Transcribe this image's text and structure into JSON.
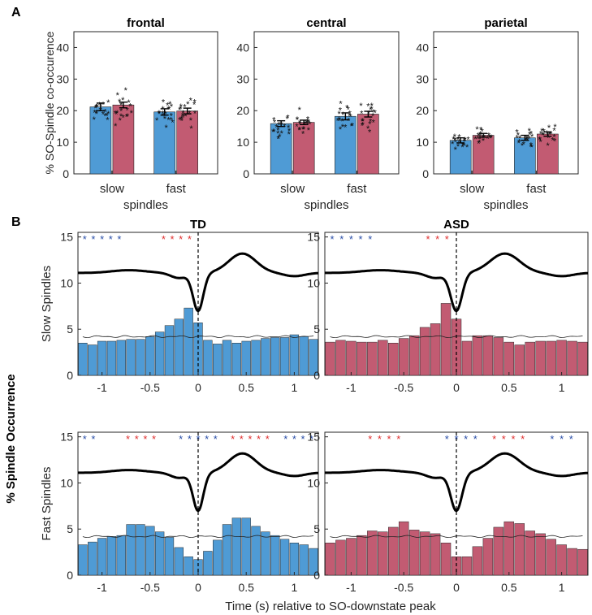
{
  "panel_labels": {
    "a": "A",
    "b": "B"
  },
  "colors": {
    "td": "#4f9bd5",
    "asd": "#c25b72",
    "td_star": "#2b4fa8",
    "asd_star": "#e03030",
    "curve": "#000000",
    "axis": "#262626"
  },
  "chart_data": [
    {
      "type": "bar",
      "panel": "A",
      "title": "frontal",
      "ylabel": "% SO-Spindle co-occurence",
      "xlabel": "spindles",
      "categories": [
        "slow",
        "fast"
      ],
      "ylim": [
        0,
        45
      ],
      "yticks": [
        "0",
        "10",
        "20",
        "30",
        "40"
      ],
      "series": [
        {
          "name": "TD",
          "values": [
            21.2,
            19.6
          ],
          "sem": [
            1.2,
            1.0
          ]
        },
        {
          "name": "ASD",
          "values": [
            21.8,
            19.9
          ],
          "sem": [
            0.9,
            0.9
          ]
        }
      ]
    },
    {
      "type": "bar",
      "panel": "A",
      "title": "central",
      "xlabel": "spindles",
      "categories": [
        "slow",
        "fast"
      ],
      "ylim": [
        0,
        45
      ],
      "yticks": [
        "0",
        "10",
        "20",
        "30",
        "40"
      ],
      "series": [
        {
          "name": "TD",
          "values": [
            15.9,
            18.2
          ],
          "sem": [
            0.9,
            1.1
          ]
        },
        {
          "name": "ASD",
          "values": [
            16.3,
            18.9
          ],
          "sem": [
            0.7,
            0.9
          ]
        }
      ]
    },
    {
      "type": "bar",
      "panel": "A",
      "title": "parietal",
      "xlabel": "spindles",
      "categories": [
        "slow",
        "fast"
      ],
      "ylim": [
        0,
        45
      ],
      "yticks": [
        "0",
        "10",
        "20",
        "30",
        "40"
      ],
      "series": [
        {
          "name": "TD",
          "values": [
            10.6,
            11.4
          ],
          "sem": [
            0.8,
            0.8
          ]
        },
        {
          "name": "ASD",
          "values": [
            12.2,
            12.6
          ],
          "sem": [
            0.6,
            0.7
          ]
        }
      ]
    },
    {
      "type": "bar",
      "panel": "B",
      "title": "TD",
      "group": "TD",
      "ylabel": "Slow Spindles",
      "xlim": [
        -1.25,
        1.25
      ],
      "ylim": [
        0,
        15.5
      ],
      "xticks": [
        -1,
        -0.5,
        0,
        0.5,
        1
      ],
      "xticklabels": [
        "-1",
        "-0.5",
        "0",
        "0.5",
        "1"
      ],
      "yticks": [
        0,
        5,
        10,
        15
      ],
      "yticklabels": [
        "0",
        "5",
        "10",
        "15"
      ],
      "bin_centers": [
        -1.2,
        -1.1,
        -1.0,
        -0.9,
        -0.8,
        -0.7,
        -0.6,
        -0.5,
        -0.4,
        -0.3,
        -0.2,
        -0.1,
        0.0,
        0.1,
        0.2,
        0.3,
        0.4,
        0.5,
        0.6,
        0.7,
        0.8,
        0.9,
        1.0,
        1.1,
        1.2
      ],
      "values": [
        3.5,
        3.3,
        3.7,
        3.7,
        3.8,
        3.9,
        3.9,
        4.2,
        4.7,
        5.4,
        6.1,
        7.3,
        5.7,
        3.8,
        3.4,
        3.8,
        3.5,
        3.7,
        3.8,
        4.0,
        4.1,
        4.1,
        4.4,
        4.2,
        3.9
      ],
      "chance_level": 4.2,
      "stars_blue": [
        -1.18,
        -1.09,
        -1.0,
        -0.91,
        -0.82
      ],
      "stars_red": [
        -0.36,
        -0.27,
        -0.18,
        -0.09
      ]
    },
    {
      "type": "bar",
      "panel": "B",
      "title": "ASD",
      "group": "ASD",
      "xlim": [
        -1.25,
        1.25
      ],
      "ylim": [
        0,
        15.5
      ],
      "xticks": [
        -1,
        -0.5,
        0,
        0.5,
        1
      ],
      "xticklabels": [
        "-1",
        "-0.5",
        "0",
        "0.5",
        "1"
      ],
      "yticks": [
        0,
        5,
        10,
        15
      ],
      "yticklabels": [
        "0",
        "5",
        "10",
        "15"
      ],
      "bin_centers": [
        -1.2,
        -1.1,
        -1.0,
        -0.9,
        -0.8,
        -0.7,
        -0.6,
        -0.5,
        -0.4,
        -0.3,
        -0.2,
        -0.1,
        0.0,
        0.1,
        0.2,
        0.3,
        0.4,
        0.5,
        0.6,
        0.7,
        0.8,
        0.9,
        1.0,
        1.1,
        1.2
      ],
      "values": [
        3.6,
        3.8,
        3.7,
        3.6,
        3.6,
        3.8,
        3.5,
        4.0,
        4.3,
        5.2,
        5.6,
        7.8,
        6.1,
        3.7,
        4.3,
        4.3,
        4.1,
        3.6,
        3.3,
        3.6,
        3.7,
        3.7,
        3.8,
        3.7,
        3.6
      ],
      "chance_level": 4.2,
      "stars_blue": [
        -1.18,
        -1.09,
        -1.0,
        -0.91,
        -0.82
      ],
      "stars_red": [
        -0.27,
        -0.18,
        -0.09
      ]
    },
    {
      "type": "bar",
      "panel": "B",
      "title": "",
      "group": "TD",
      "ylabel": "Fast Spindles",
      "xlim": [
        -1.25,
        1.25
      ],
      "ylim": [
        0,
        15.5
      ],
      "xticks": [
        -1,
        -0.5,
        0,
        0.5,
        1
      ],
      "xticklabels": [
        "-1",
        "-0.5",
        "0",
        "0.5",
        "1"
      ],
      "yticks": [
        0,
        5,
        10,
        15
      ],
      "yticklabels": [
        "0",
        "5",
        "10",
        "15"
      ],
      "bin_centers": [
        -1.2,
        -1.1,
        -1.0,
        -0.9,
        -0.8,
        -0.7,
        -0.6,
        -0.5,
        -0.4,
        -0.3,
        -0.2,
        -0.1,
        0.0,
        0.1,
        0.2,
        0.3,
        0.4,
        0.5,
        0.6,
        0.7,
        0.8,
        0.9,
        1.0,
        1.1,
        1.2
      ],
      "values": [
        3.3,
        3.6,
        4.0,
        4.2,
        4.3,
        5.5,
        5.5,
        5.3,
        4.7,
        4.1,
        3.0,
        2.0,
        1.7,
        2.6,
        3.8,
        5.5,
        6.2,
        6.2,
        5.3,
        4.7,
        4.3,
        3.9,
        3.5,
        3.3,
        2.9
      ],
      "chance_level": 4.2,
      "stars_blue": [
        -1.18,
        -1.09,
        -0.18,
        -0.09,
        0.0,
        0.09,
        0.18,
        0.91,
        1.0,
        1.09,
        1.18
      ],
      "stars_red": [
        -0.73,
        -0.64,
        -0.55,
        -0.46,
        0.36,
        0.45,
        0.54,
        0.63,
        0.72
      ]
    },
    {
      "type": "bar",
      "panel": "B",
      "title": "",
      "group": "ASD",
      "xlim": [
        -1.25,
        1.25
      ],
      "ylim": [
        0,
        15.5
      ],
      "xticks": [
        -1,
        -0.5,
        0,
        0.5,
        1
      ],
      "xticklabels": [
        "-1",
        "-0.5",
        "0",
        "0.5",
        "1"
      ],
      "yticks": [
        0,
        5,
        10,
        15
      ],
      "yticklabels": [
        "0",
        "5",
        "10",
        "15"
      ],
      "bin_centers": [
        -1.2,
        -1.1,
        -1.0,
        -0.9,
        -0.8,
        -0.7,
        -0.6,
        -0.5,
        -0.4,
        -0.3,
        -0.2,
        -0.1,
        0.0,
        0.1,
        0.2,
        0.3,
        0.4,
        0.5,
        0.6,
        0.7,
        0.8,
        0.9,
        1.0,
        1.1,
        1.2
      ],
      "values": [
        3.5,
        3.8,
        4.0,
        4.3,
        4.8,
        4.7,
        5.2,
        5.8,
        4.9,
        4.7,
        4.5,
        3.5,
        2.0,
        2.0,
        3.1,
        4.0,
        5.2,
        5.8,
        5.6,
        4.8,
        4.5,
        3.9,
        3.3,
        2.9,
        2.8
      ],
      "chance_level": 4.2,
      "stars_blue": [
        -0.09,
        0.0,
        0.09,
        0.18,
        0.91,
        1.0,
        1.09
      ],
      "stars_red": [
        -0.82,
        -0.73,
        -0.64,
        -0.55,
        0.36,
        0.45,
        0.54,
        0.63
      ]
    }
  ],
  "figure_text": {
    "ylabel_b": "% Spindle Occurrence",
    "xlabel_b": "Time (s) relative to SO-downstate peak"
  }
}
